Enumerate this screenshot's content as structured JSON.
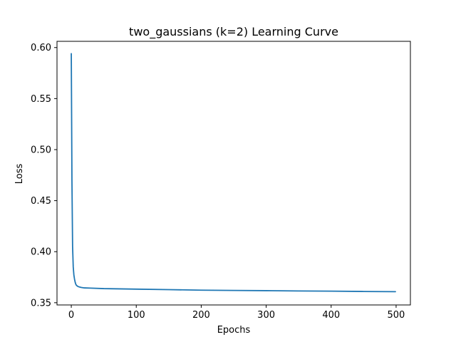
{
  "chart_data": {
    "type": "line",
    "title": "two_gaussians (k=2) Learning Curve",
    "xlabel": "Epochs",
    "ylabel": "Loss",
    "xlim": [
      -22,
      522
    ],
    "ylim": [
      0.3478,
      0.6061
    ],
    "xticks": [
      0,
      100,
      200,
      300,
      400,
      500
    ],
    "xtick_labels": [
      "0",
      "100",
      "200",
      "300",
      "400",
      "500"
    ],
    "yticks": [
      0.35,
      0.4,
      0.45,
      0.5,
      0.55,
      0.6
    ],
    "ytick_labels": [
      "0.35",
      "0.40",
      "0.45",
      "0.50",
      "0.55",
      "0.60"
    ],
    "grid": false,
    "legend": "none",
    "line_color": "#1f77b4",
    "series": [
      {
        "x": [
          0,
          1,
          2,
          3,
          4,
          5,
          6,
          7,
          8,
          10,
          12,
          15,
          20,
          30,
          50,
          100,
          150,
          200,
          250,
          300,
          350,
          400,
          450,
          499
        ],
        "values": [
          0.594,
          0.47,
          0.405,
          0.385,
          0.377,
          0.373,
          0.37,
          0.368,
          0.367,
          0.366,
          0.3655,
          0.365,
          0.3645,
          0.3643,
          0.3638,
          0.3633,
          0.3628,
          0.3623,
          0.362,
          0.3618,
          0.3615,
          0.3613,
          0.361,
          0.3608
        ]
      }
    ]
  }
}
